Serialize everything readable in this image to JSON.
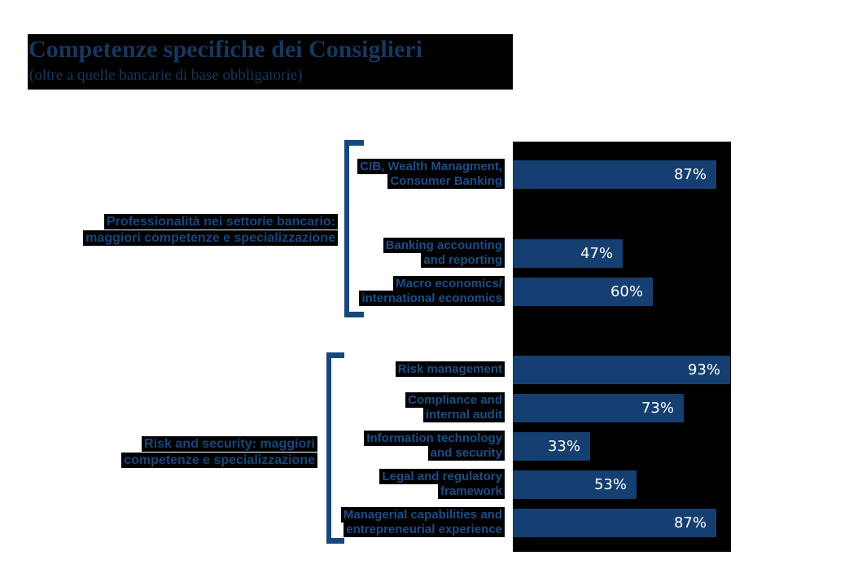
{
  "page": {
    "title": "Competenze specifiche dei Consiglieri",
    "subtitle": "(oltre a quelle bancarie di base obbligatorie)"
  },
  "colors": {
    "navy_text": "#17375d",
    "item_label_blue": "#1d4e87",
    "group_label_blue": "#17477d",
    "bar_fill": "#153f70",
    "bar_value_text": "#ffffff",
    "highlight_background": "#000000",
    "page_background": "#ffffff"
  },
  "chart_data": {
    "type": "bar",
    "orientation": "horizontal",
    "unit": "%",
    "xlim": [
      0,
      100
    ],
    "grid": false,
    "legend": "none",
    "title": "Competenze specifiche dei Consiglieri",
    "subtitle": "(oltre a quelle bancarie di base obbligatorie)",
    "groups": [
      {
        "name": "professionalita-settore-bancario",
        "label_lines": [
          "Professionalità nei settorie bancario:",
          "maggiori competenze e specializzazione"
        ],
        "items": [
          {
            "label_lines": [
              "CIB, Wealth Managment,",
              "Consumer Banking"
            ],
            "value": 87,
            "display": "87%"
          },
          {
            "label_lines": [
              "Banking accounting",
              "and reporting"
            ],
            "value": 47,
            "display": "47%"
          },
          {
            "label_lines": [
              "Macro economics/",
              "international economics"
            ],
            "value": 60,
            "display": "60%"
          }
        ]
      },
      {
        "name": "risk-and-security",
        "label_lines": [
          "Risk and security: maggiori",
          "competenze e specializzazione"
        ],
        "items": [
          {
            "label_lines": [
              "Risk management"
            ],
            "value": 93,
            "display": "93%"
          },
          {
            "label_lines": [
              "Compliance and",
              "internal audit"
            ],
            "value": 73,
            "display": "73%"
          },
          {
            "label_lines": [
              "Information technology",
              "and security"
            ],
            "value": 33,
            "display": "33%"
          },
          {
            "label_lines": [
              "Legal and regulatory",
              "framework"
            ],
            "value": 53,
            "display": "53%"
          },
          {
            "label_lines": [
              "Managerial capabilities and",
              "entrepreneurial experience"
            ],
            "value": 87,
            "display": "87%"
          }
        ]
      }
    ]
  }
}
